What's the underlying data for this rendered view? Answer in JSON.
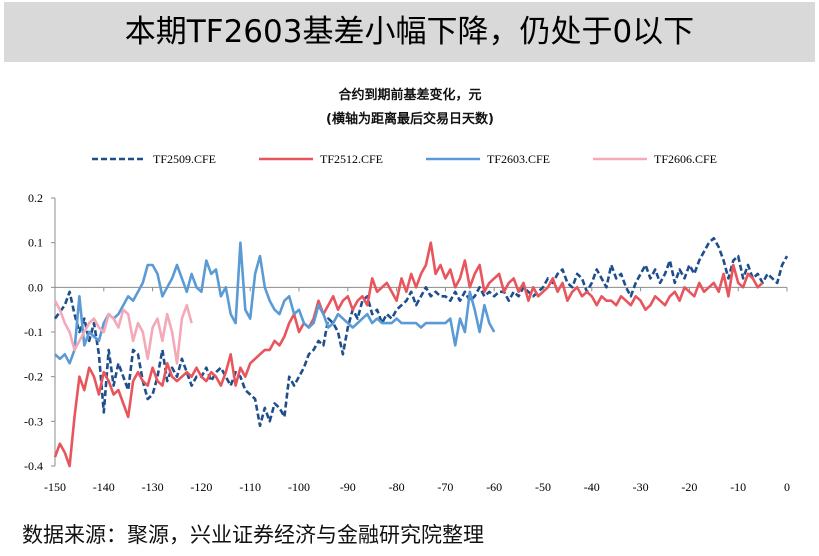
{
  "header": {
    "title": "本期TF2603基差小幅下降，仍处于0以下"
  },
  "source": {
    "text": "数据来源：聚源，兴业证券经济与金融研究院整理"
  },
  "chart_data": {
    "type": "line",
    "title": "合约到期前基差变化，元",
    "subtitle": "(横轴为距离最后交易日天数)",
    "xlabel": "",
    "ylabel": "",
    "xlim": [
      -150,
      0
    ],
    "ylim": [
      -0.4,
      0.2
    ],
    "x_ticks": [
      "-150",
      "-140",
      "-130",
      "-120",
      "-110",
      "-100",
      "-90",
      "-80",
      "-70",
      "-60",
      "-50",
      "-40",
      "-30",
      "-20",
      "-10",
      "0"
    ],
    "y_ticks": [
      "0.2",
      "0.1",
      "0.0",
      "-0.1",
      "-0.2",
      "-0.3",
      "-0.4"
    ],
    "grid": false,
    "legend_position": "top",
    "series": [
      {
        "name": "TF2509.CFE",
        "color": "#1f4e8c",
        "dash": true,
        "x": [
          -150,
          -148,
          -147,
          -146,
          -145,
          -144,
          -143,
          -142,
          -141,
          -140,
          -139,
          -138,
          -137,
          -136,
          -135,
          -134,
          -133,
          -132,
          -131,
          -130,
          -129,
          -128,
          -127,
          -126,
          -125,
          -124,
          -123,
          -122,
          -121,
          -120,
          -119,
          -118,
          -117,
          -116,
          -115,
          -114,
          -113,
          -112,
          -111,
          -110,
          -109,
          -108,
          -107,
          -106,
          -105,
          -104,
          -103,
          -102,
          -101,
          -100,
          -99,
          -98,
          -97,
          -96,
          -95,
          -94,
          -93,
          -92,
          -91,
          -90,
          -89,
          -88,
          -87,
          -86,
          -85,
          -84,
          -83,
          -82,
          -81,
          -80,
          -79,
          -78,
          -77,
          -76,
          -75,
          -74,
          -73,
          -72,
          -71,
          -70,
          -69,
          -68,
          -67,
          -66,
          -65,
          -64,
          -63,
          -62,
          -61,
          -60,
          -59,
          -58,
          -57,
          -56,
          -55,
          -54,
          -53,
          -52,
          -51,
          -50,
          -49,
          -48,
          -47,
          -46,
          -45,
          -44,
          -43,
          -42,
          -41,
          -40,
          -39,
          -38,
          -37,
          -36,
          -35,
          -34,
          -33,
          -32,
          -31,
          -30,
          -29,
          -28,
          -27,
          -26,
          -25,
          -24,
          -23,
          -22,
          -21,
          -20,
          -19,
          -18,
          -17,
          -16,
          -15,
          -14,
          -13,
          -12,
          -11,
          -10,
          -9,
          -8,
          -7,
          -6,
          -5,
          -4,
          -3,
          -2,
          -1,
          0
        ],
        "values": [
          -0.07,
          -0.04,
          -0.01,
          -0.06,
          -0.1,
          -0.07,
          -0.12,
          -0.08,
          -0.15,
          -0.28,
          -0.14,
          -0.22,
          -0.17,
          -0.2,
          -0.23,
          -0.14,
          -0.15,
          -0.21,
          -0.25,
          -0.24,
          -0.2,
          -0.14,
          -0.21,
          -0.18,
          -0.2,
          -0.16,
          -0.19,
          -0.22,
          -0.2,
          -0.2,
          -0.18,
          -0.21,
          -0.19,
          -0.18,
          -0.2,
          -0.22,
          -0.19,
          -0.2,
          -0.23,
          -0.24,
          -0.25,
          -0.31,
          -0.27,
          -0.3,
          -0.26,
          -0.27,
          -0.29,
          -0.2,
          -0.22,
          -0.2,
          -0.18,
          -0.15,
          -0.14,
          -0.12,
          -0.13,
          -0.07,
          -0.08,
          -0.1,
          -0.15,
          -0.09,
          -0.05,
          -0.07,
          -0.03,
          -0.02,
          -0.06,
          -0.05,
          -0.08,
          -0.06,
          -0.07,
          -0.05,
          -0.04,
          -0.03,
          -0.01,
          -0.04,
          -0.02,
          0.0,
          -0.02,
          -0.01,
          -0.02,
          -0.02,
          -0.03,
          -0.01,
          -0.03,
          -0.01,
          -0.03,
          -0.02,
          0.0,
          -0.02,
          -0.01,
          -0.02,
          -0.01,
          -0.01,
          -0.03,
          -0.01,
          -0.02,
          0.0,
          -0.01,
          -0.02,
          -0.01,
          0.0,
          0.02,
          0.01,
          0.03,
          0.04,
          0.01,
          0.0,
          0.03,
          0.02,
          -0.01,
          0.01,
          0.04,
          0.02,
          0.0,
          0.05,
          0.02,
          0.03,
          0.0,
          -0.02,
          0.01,
          0.03,
          0.05,
          0.02,
          0.04,
          0.01,
          0.03,
          0.06,
          0.01,
          0.04,
          0.02,
          0.05,
          0.03,
          0.06,
          0.08,
          0.1,
          0.11,
          0.09,
          0.06,
          0.02,
          0.06,
          0.07,
          0.02,
          0.05,
          0.02,
          0.03,
          0.01,
          0.03,
          0.02,
          0.01,
          0.05,
          0.07
        ]
      },
      {
        "name": "TF2512.CFE",
        "color": "#e8555d",
        "dash": false,
        "x": [
          -150,
          -149,
          -148,
          -147,
          -146,
          -145,
          -144,
          -143,
          -142,
          -141,
          -140,
          -139,
          -138,
          -137,
          -136,
          -135,
          -134,
          -133,
          -132,
          -131,
          -130,
          -129,
          -128,
          -127,
          -126,
          -125,
          -124,
          -123,
          -122,
          -121,
          -120,
          -119,
          -118,
          -117,
          -116,
          -115,
          -114,
          -113,
          -112,
          -111,
          -110,
          -109,
          -108,
          -107,
          -106,
          -105,
          -104,
          -103,
          -102,
          -101,
          -100,
          -99,
          -98,
          -97,
          -96,
          -95,
          -94,
          -93,
          -92,
          -91,
          -90,
          -89,
          -88,
          -87,
          -86,
          -85,
          -84,
          -83,
          -82,
          -81,
          -80,
          -79,
          -78,
          -77,
          -76,
          -75,
          -74,
          -73,
          -72,
          -71,
          -70,
          -69,
          -68,
          -67,
          -66,
          -65,
          -64,
          -63,
          -62,
          -61,
          -60,
          -59,
          -58,
          -57,
          -56,
          -55,
          -54,
          -53,
          -52,
          -51,
          -50,
          -49,
          -48,
          -47,
          -46,
          -45,
          -44,
          -43,
          -42,
          -41,
          -40,
          -39,
          -38,
          -37,
          -36,
          -35,
          -34,
          -33,
          -32,
          -31,
          -30,
          -29,
          -28,
          -27,
          -26,
          -25,
          -24,
          -23,
          -22,
          -21,
          -20,
          -19,
          -18,
          -17,
          -16,
          -15,
          -14,
          -13,
          -12,
          -11,
          -10,
          -9,
          -8,
          -7,
          -6,
          -5
        ],
        "values": [
          -0.38,
          -0.35,
          -0.37,
          -0.4,
          -0.29,
          -0.2,
          -0.23,
          -0.18,
          -0.2,
          -0.24,
          -0.19,
          -0.21,
          -0.24,
          -0.23,
          -0.26,
          -0.29,
          -0.21,
          -0.19,
          -0.21,
          -0.22,
          -0.18,
          -0.21,
          -0.22,
          -0.17,
          -0.2,
          -0.21,
          -0.2,
          -0.19,
          -0.2,
          -0.18,
          -0.2,
          -0.21,
          -0.19,
          -0.2,
          -0.22,
          -0.19,
          -0.15,
          -0.22,
          -0.18,
          -0.2,
          -0.17,
          -0.16,
          -0.15,
          -0.14,
          -0.14,
          -0.12,
          -0.13,
          -0.11,
          -0.08,
          -0.06,
          -0.1,
          -0.08,
          -0.09,
          -0.07,
          -0.03,
          -0.06,
          -0.04,
          -0.02,
          -0.05,
          -0.03,
          -0.02,
          -0.05,
          -0.03,
          -0.02,
          -0.04,
          0.02,
          -0.01,
          0.0,
          0.01,
          -0.01,
          -0.03,
          0.02,
          -0.01,
          0.03,
          0.0,
          0.03,
          0.05,
          0.1,
          0.03,
          0.05,
          0.02,
          0.04,
          0.0,
          0.02,
          0.06,
          0.0,
          0.03,
          0.05,
          -0.01,
          0.01,
          0.02,
          0.03,
          -0.01,
          0.01,
          0.02,
          -0.01,
          0.01,
          -0.03,
          0.0,
          -0.02,
          -0.01,
          0.0,
          0.02,
          -0.01,
          0.01,
          -0.03,
          -0.01,
          0.0,
          -0.02,
          -0.01,
          -0.02,
          -0.04,
          -0.02,
          -0.03,
          -0.03,
          -0.04,
          -0.02,
          -0.03,
          -0.04,
          -0.02,
          -0.03,
          -0.05,
          -0.04,
          -0.02,
          -0.03,
          -0.04,
          -0.02,
          -0.01,
          -0.03,
          0.0,
          -0.01,
          -0.02,
          0.01,
          -0.01,
          0.0,
          0.01,
          -0.01,
          0.03,
          -0.02,
          0.05,
          0.01,
          0.0,
          0.03,
          0.02,
          0.0,
          0.01
        ]
      },
      {
        "name": "TF2603.CFE",
        "color": "#5b9bd5",
        "dash": false,
        "x": [
          -150,
          -149,
          -148,
          -147,
          -146,
          -145,
          -144,
          -143,
          -142,
          -141,
          -140,
          -139,
          -138,
          -137,
          -136,
          -135,
          -134,
          -133,
          -132,
          -131,
          -130,
          -129,
          -128,
          -127,
          -126,
          -125,
          -124,
          -123,
          -122,
          -121,
          -120,
          -119,
          -118,
          -117,
          -116,
          -115,
          -114,
          -113,
          -112,
          -111,
          -110,
          -109,
          -108,
          -107,
          -106,
          -105,
          -104,
          -103,
          -102,
          -101,
          -100,
          -99,
          -98,
          -97,
          -96,
          -95,
          -94,
          -93,
          -92,
          -91,
          -90,
          -89,
          -88,
          -87,
          -86,
          -85,
          -84,
          -83,
          -82,
          -81,
          -80,
          -79,
          -78,
          -77,
          -76,
          -75,
          -74,
          -73,
          -72,
          -71,
          -70,
          -69,
          -68,
          -67,
          -66,
          -65,
          -64,
          -63,
          -62,
          -61,
          -60
        ],
        "values": [
          -0.15,
          -0.16,
          -0.15,
          -0.17,
          -0.14,
          -0.02,
          -0.13,
          -0.1,
          -0.11,
          -0.12,
          -0.08,
          -0.06,
          -0.07,
          -0.06,
          -0.04,
          -0.02,
          -0.03,
          -0.01,
          0.01,
          0.05,
          0.05,
          0.03,
          -0.02,
          0.0,
          0.02,
          0.05,
          0.02,
          -0.01,
          0.03,
          0.0,
          -0.01,
          0.06,
          0.03,
          0.04,
          -0.02,
          0.0,
          -0.06,
          -0.08,
          0.1,
          -0.05,
          -0.07,
          0.03,
          0.07,
          0.0,
          -0.03,
          -0.05,
          -0.06,
          -0.03,
          -0.02,
          -0.06,
          -0.05,
          -0.08,
          -0.09,
          -0.08,
          -0.04,
          -0.06,
          -0.09,
          -0.08,
          -0.06,
          -0.07,
          -0.08,
          -0.09,
          -0.08,
          -0.07,
          -0.06,
          -0.08,
          -0.07,
          -0.08,
          -0.08,
          -0.08,
          -0.07,
          -0.08,
          -0.08,
          -0.08,
          -0.08,
          -0.09,
          -0.08,
          -0.08,
          -0.08,
          -0.08,
          -0.08,
          -0.07,
          -0.13,
          -0.07,
          -0.1,
          -0.01,
          -0.05,
          -0.1,
          -0.04,
          -0.08,
          -0.1
        ]
      },
      {
        "name": "TF2606.CFE",
        "color": "#f4a9b8",
        "dash": false,
        "x": [
          -150,
          -149,
          -148,
          -147,
          -146,
          -145,
          -144,
          -143,
          -142,
          -141,
          -140,
          -139,
          -138,
          -137,
          -136,
          -135,
          -134,
          -133,
          -132,
          -131,
          -130,
          -129,
          -128,
          -127,
          -126,
          -125,
          -124,
          -123,
          -122
        ],
        "values": [
          -0.03,
          -0.05,
          -0.08,
          -0.1,
          -0.14,
          -0.12,
          -0.1,
          -0.08,
          -0.07,
          -0.09,
          -0.1,
          -0.06,
          -0.07,
          -0.09,
          -0.05,
          -0.06,
          -0.12,
          -0.08,
          -0.1,
          -0.16,
          -0.09,
          -0.07,
          -0.12,
          -0.06,
          -0.1,
          -0.17,
          -0.07,
          -0.04,
          -0.08
        ]
      }
    ]
  }
}
